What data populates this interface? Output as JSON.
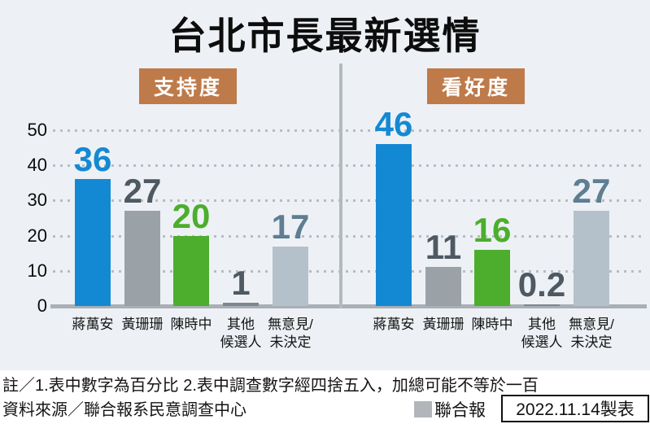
{
  "title": "台北市長最新選情",
  "colors": {
    "chart_background": "#edf1f5",
    "footer_background": "#ffffff",
    "badge_background": "#bf7a4a",
    "blue_bar": "#1489d3",
    "gray_bar": "#9aa2a8",
    "green_bar": "#4cae2c",
    "dark_gray_bar": "#7d878e",
    "light_gray_bar": "#b5c1ca",
    "dark_value_text": "#4e5962",
    "steel_value_text": "#5e7e92",
    "axis_line": "#a9afb5",
    "grid_dots": "#b7bdc3"
  },
  "chart_data": {
    "type": "bar",
    "title": "台北市長最新選情",
    "categories": [
      "蔣萬安",
      "黃珊珊",
      "陳時中",
      "其他\n候選人",
      "無意見/\n未決定"
    ],
    "y_ticks": [
      0,
      10,
      20,
      30,
      40,
      50
    ],
    "ylim": [
      0,
      50
    ],
    "unit": "percent",
    "grid": "horizontal dotted",
    "legend_position": "bottom-right",
    "panels": [
      {
        "label": "支持度",
        "values": [
          36,
          27,
          20,
          1,
          17
        ]
      },
      {
        "label": "看好度",
        "values": [
          46,
          11,
          16,
          0.2,
          27
        ]
      }
    ],
    "bar_colors": [
      "#1489d3",
      "#9aa2a8",
      "#4cae2c",
      "#7d878e",
      "#b5c1ca"
    ],
    "value_label_colors": [
      "#1489d3",
      "#4e5962",
      "#4cae2c",
      "#4e5962",
      "#5e7e92"
    ]
  },
  "footer": {
    "note": "註／1.表中數字為百分比  2.表中調查數字經四捨五入，加總可能不等於一百",
    "source": "資料來源／聯合報系民意調查中心",
    "legend_label": "聯合報",
    "legend_color": "#b2b6ba",
    "credit": "2022.11.14製表"
  }
}
